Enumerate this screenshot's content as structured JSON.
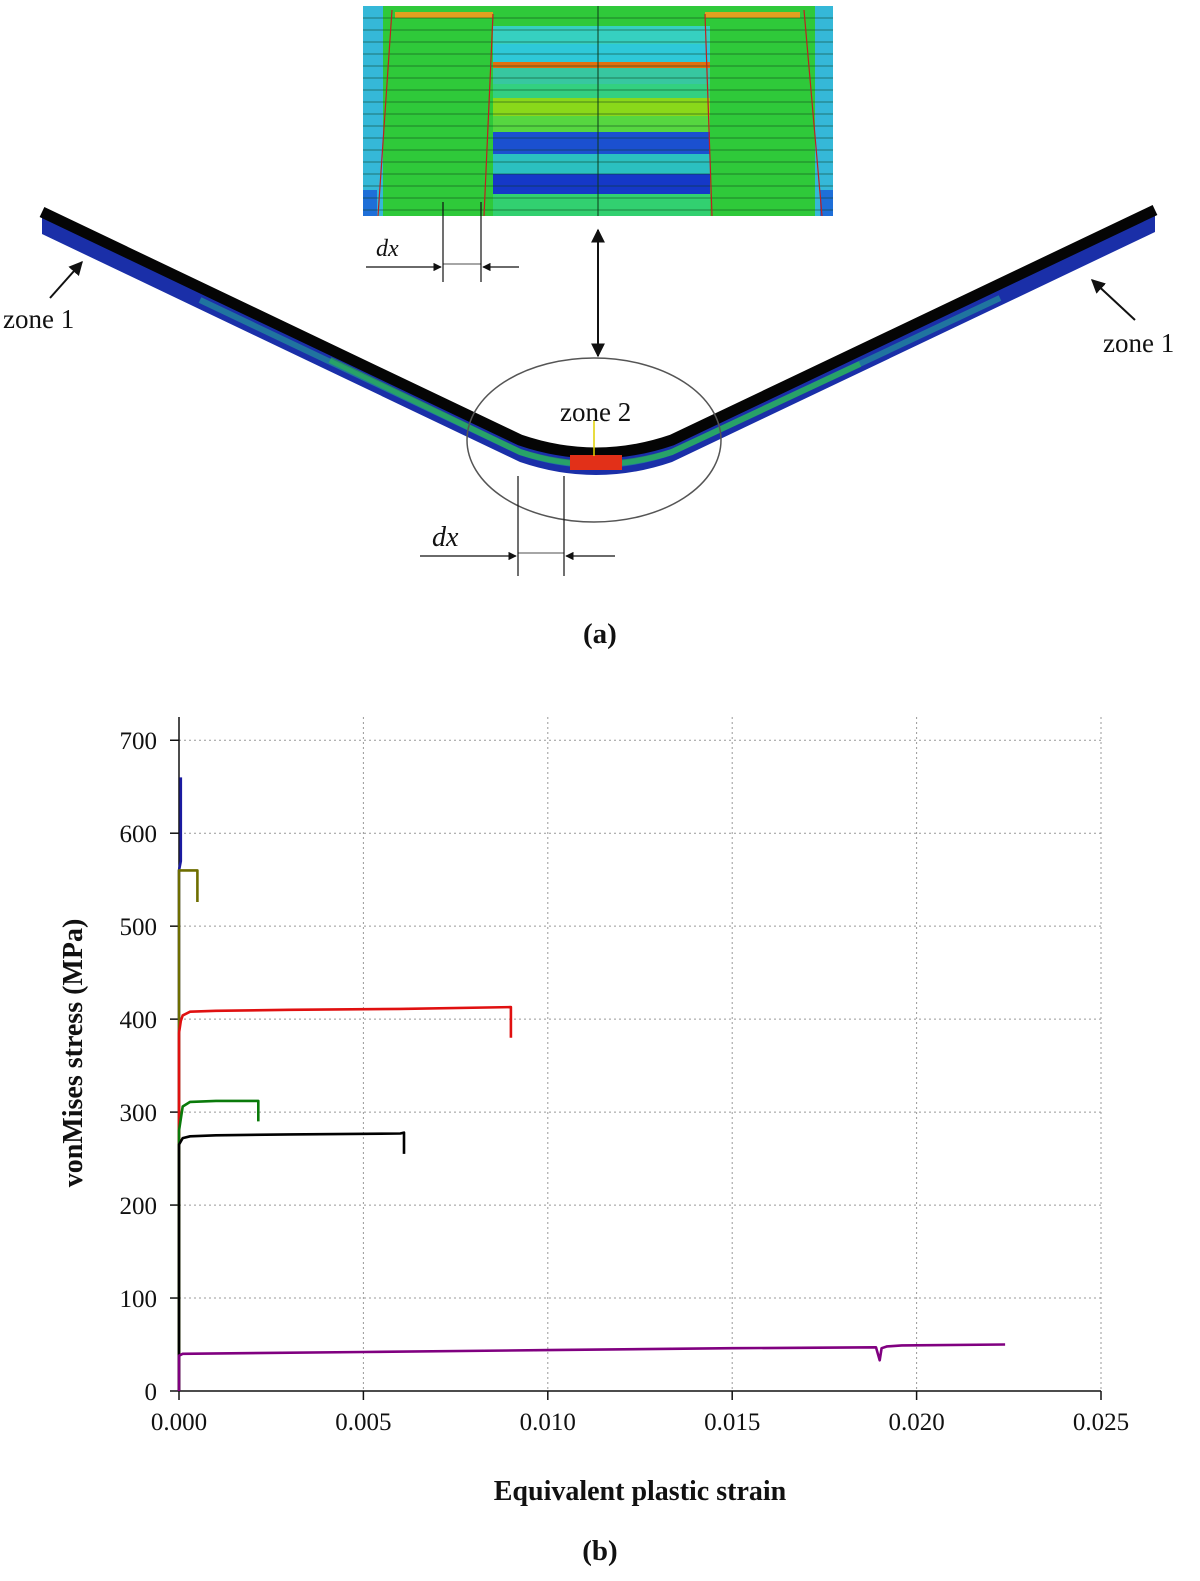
{
  "panel_a": {
    "caption": "(a)",
    "zone1_left": "zone 1",
    "zone1_right": "zone 1",
    "zone2": "zone 2",
    "dx_top": "dx",
    "dx_bottom": "dx"
  },
  "panel_b": {
    "caption": "(b)"
  },
  "chart_data": {
    "type": "line",
    "title": "",
    "xlabel": "Equivalent plastic strain",
    "ylabel": "vonMises stress (MPa)",
    "xlim": [
      0,
      0.025
    ],
    "ylim": [
      0,
      725
    ],
    "xticks": [
      "0.000",
      "0.005",
      "0.010",
      "0.015",
      "0.020",
      "0.025"
    ],
    "yticks": [
      "0",
      "100",
      "200",
      "300",
      "400",
      "500",
      "600",
      "700"
    ],
    "xtick_values": [
      0,
      0.005,
      0.01,
      0.015,
      0.02,
      0.025
    ],
    "ytick_values": [
      0,
      100,
      200,
      300,
      400,
      500,
      600,
      700
    ],
    "grid": true,
    "series": [
      {
        "color": "#1a1aa0",
        "x": [
          0,
          0,
          5e-05,
          5e-05
        ],
        "y": [
          0,
          560,
          570,
          660
        ]
      },
      {
        "color": "#6e6e00",
        "x": [
          0,
          0,
          0.0005,
          0.0005
        ],
        "y": [
          0,
          560,
          560,
          526
        ]
      },
      {
        "color": "#e01010",
        "x": [
          0,
          0,
          5e-05,
          0.0001,
          0.0003,
          0.001,
          0.003,
          0.006,
          0.009,
          0.009
        ],
        "y": [
          0,
          385,
          398,
          404,
          408,
          409,
          410,
          411,
          413,
          380
        ]
      },
      {
        "color": "#0a7a0a",
        "x": [
          0,
          0,
          0.0001,
          0.0003,
          0.001,
          0.00215,
          0.00215
        ],
        "y": [
          0,
          280,
          306,
          311,
          312,
          312,
          290
        ]
      },
      {
        "color": "#000000",
        "x": [
          0,
          0,
          0.0001,
          0.0003,
          0.001,
          0.003,
          0.006,
          0.0061,
          0.0061
        ],
        "y": [
          0,
          265,
          272,
          274,
          275,
          276,
          277,
          278,
          255
        ]
      },
      {
        "color": "#800080",
        "x": [
          0,
          0,
          0.0001,
          0.005,
          0.01,
          0.015,
          0.0189,
          0.019,
          0.01905,
          0.0192,
          0.0196,
          0.0224
        ],
        "y": [
          0,
          38,
          40,
          42,
          44,
          46,
          47,
          33,
          46,
          48,
          49,
          50
        ]
      }
    ]
  }
}
